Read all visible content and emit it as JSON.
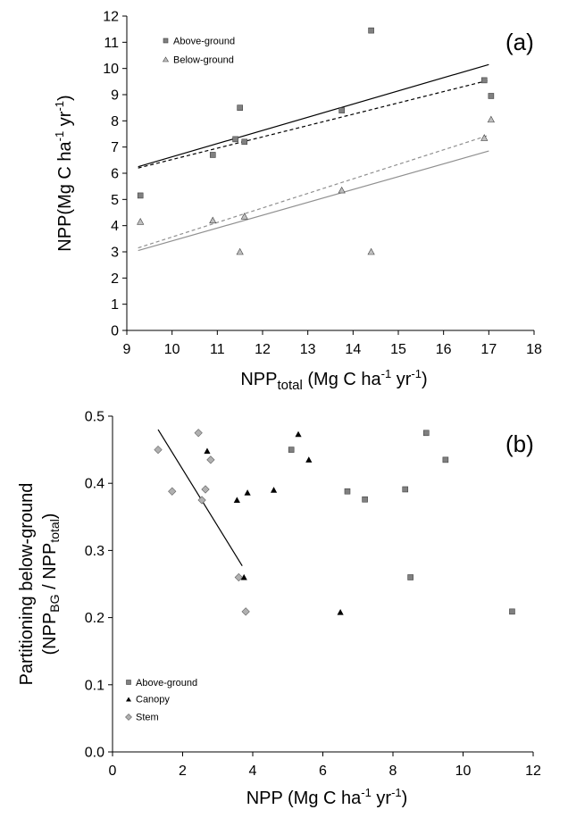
{
  "chart_data": [
    {
      "type": "scatter",
      "panel_label": "(a)",
      "xlabel": {
        "main": "NPP",
        "sub": "total",
        "units": " (Mg C ha",
        "exp1": "-1",
        "mid": " yr",
        "exp2": "-1",
        "end": ")"
      },
      "ylabel": {
        "main": "NPP(Mg C ha",
        "exp1": "-1",
        "mid": " yr",
        "exp2": "-1",
        "end": ")"
      },
      "xlim": [
        9,
        18
      ],
      "ylim": [
        0,
        12
      ],
      "x_ticks": [
        "9",
        "10",
        "11",
        "12",
        "13",
        "14",
        "15",
        "16",
        "17",
        "18"
      ],
      "y_ticks": [
        "0",
        "1",
        "2",
        "3",
        "4",
        "5",
        "6",
        "7",
        "8",
        "9",
        "10",
        "11",
        "12"
      ],
      "legend_position": "top-left",
      "grid": false,
      "series": [
        {
          "name": "Above-ground",
          "marker": "square",
          "color": "#808080",
          "x": [
            9.3,
            10.9,
            11.4,
            11.5,
            11.6,
            13.75,
            14.4,
            16.9,
            17.05
          ],
          "y": [
            5.15,
            6.7,
            7.3,
            8.5,
            7.2,
            8.4,
            11.45,
            9.55,
            8.95
          ]
        },
        {
          "name": "Below-ground",
          "marker": "triangle",
          "color": "#c0c0c0",
          "x": [
            9.3,
            10.9,
            11.5,
            11.6,
            13.75,
            14.4,
            16.9,
            17.05
          ],
          "y": [
            4.15,
            4.2,
            3.0,
            4.35,
            5.35,
            3.0,
            7.35,
            8.05
          ]
        }
      ],
      "fit_lines": [
        {
          "style": "solid",
          "color": "#000000",
          "x": [
            9.25,
            17.0
          ],
          "y": [
            6.25,
            10.15
          ]
        },
        {
          "style": "dashed",
          "color": "#000000",
          "x": [
            9.25,
            17.0
          ],
          "y": [
            6.2,
            9.55
          ]
        },
        {
          "style": "dashed",
          "color": "#909090",
          "x": [
            9.25,
            17.0
          ],
          "y": [
            3.15,
            7.45
          ]
        },
        {
          "style": "solid",
          "color": "#909090",
          "x": [
            9.25,
            17.0
          ],
          "y": [
            3.05,
            6.85
          ]
        }
      ]
    },
    {
      "type": "scatter",
      "panel_label": "(b)",
      "xlabel": {
        "main": "NPP (Mg C ha",
        "exp1": "-1",
        "mid": " yr",
        "exp2": "-1",
        "end": ")"
      },
      "ylabel": {
        "line1": "Partitioning below-ground",
        "l2a": "(NPP",
        "l2sub1": "BG",
        "l2b": " / NPP",
        "l2sub2": "total",
        "l2c": ")"
      },
      "xlim": [
        0,
        12
      ],
      "ylim": [
        0.0,
        0.5
      ],
      "x_ticks": [
        "0",
        "2",
        "4",
        "6",
        "8",
        "10",
        "12"
      ],
      "y_ticks": [
        "0.0",
        "0.1",
        "0.2",
        "0.3",
        "0.4",
        "0.5"
      ],
      "legend_position": "bottom-left",
      "grid": false,
      "series": [
        {
          "name": "Above-ground",
          "marker": "square",
          "color": "#808080",
          "x": [
            5.1,
            6.7,
            7.2,
            8.35,
            8.5,
            8.95,
            9.5,
            11.4
          ],
          "y": [
            0.45,
            0.388,
            0.376,
            0.391,
            0.26,
            0.475,
            0.435,
            0.209
          ]
        },
        {
          "name": "Canopy",
          "marker": "triangle",
          "color": "#000000",
          "x": [
            2.7,
            3.55,
            3.75,
            3.85,
            4.6,
            5.3,
            5.6,
            6.5
          ],
          "y": [
            0.448,
            0.375,
            0.26,
            0.386,
            0.39,
            0.473,
            0.435,
            0.208
          ]
        },
        {
          "name": "Stem",
          "marker": "diamond",
          "color": "#b0b0b0",
          "x": [
            1.3,
            1.7,
            2.45,
            2.55,
            2.65,
            2.8,
            3.6,
            3.8
          ],
          "y": [
            0.45,
            0.388,
            0.475,
            0.375,
            0.391,
            0.435,
            0.26,
            0.209
          ]
        }
      ],
      "fit_lines": [
        {
          "style": "solid",
          "color": "#000000",
          "x": [
            1.3,
            3.7
          ],
          "y": [
            0.48,
            0.277
          ]
        }
      ]
    }
  ]
}
